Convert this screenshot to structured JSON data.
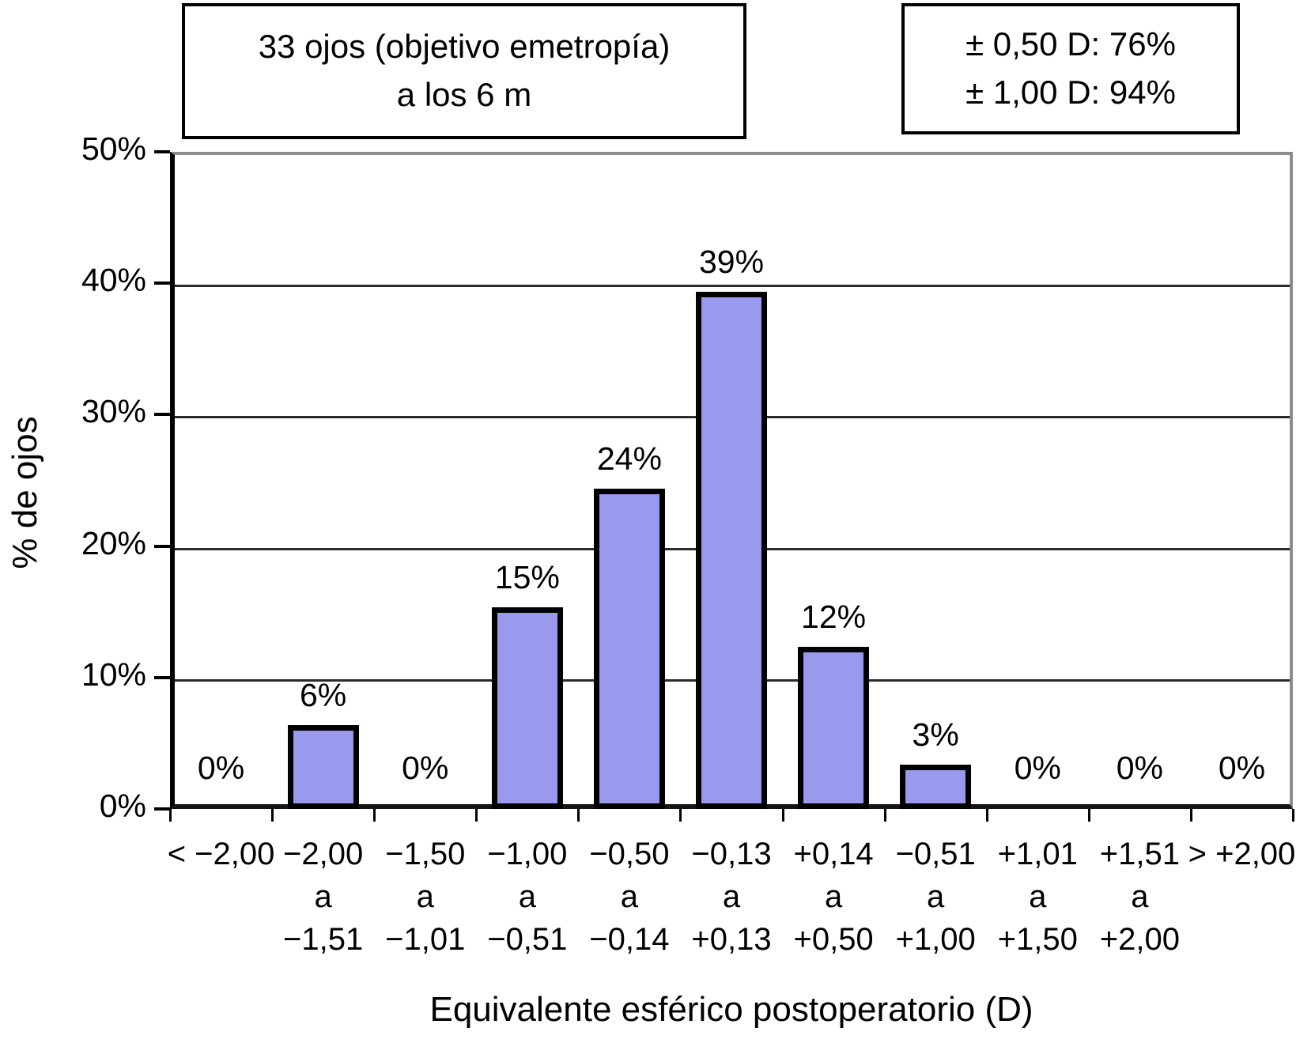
{
  "annotation_boxes": {
    "left": {
      "line1": "33 ojos (objetivo emetropía)",
      "line2": "a los 6 m"
    },
    "right": {
      "line1": "± 0,50 D: 76%",
      "line2": "± 1,00 D: 94%"
    }
  },
  "chart_data": {
    "type": "bar",
    "categories": [
      [
        "< −2,00"
      ],
      [
        "−2,00",
        "a",
        "−1,51"
      ],
      [
        "−1,50",
        "a",
        "−1,01"
      ],
      [
        "−1,00",
        "a",
        "−0,51"
      ],
      [
        "−0,50",
        "a",
        "−0,14"
      ],
      [
        "−0,13",
        "a",
        "+0,13"
      ],
      [
        "+0,14",
        "a",
        "+0,50"
      ],
      [
        "−0,51",
        "a",
        "+1,00"
      ],
      [
        "+1,01",
        "a",
        "+1,50"
      ],
      [
        "+1,51",
        "a",
        "+2,00"
      ],
      [
        "> +2,00"
      ]
    ],
    "values": [
      0,
      6,
      0,
      15,
      24,
      39,
      12,
      3,
      0,
      0,
      0
    ],
    "bar_labels": [
      "0%",
      "6%",
      "0%",
      "15%",
      "24%",
      "39%",
      "12%",
      "3%",
      "0%",
      "0%",
      "0%"
    ],
    "title": "33 ojos (objetivo emetropía) a los 6 m",
    "xlabel": "Equivalente esférico postoperatorio (D)",
    "ylabel": "% de ojos",
    "ylim": [
      0,
      50
    ],
    "yticks": [
      "0%",
      "10%",
      "20%",
      "30%",
      "40%",
      "50%"
    ],
    "grid": true,
    "legend_position": "none",
    "bar_color": "#9999ee",
    "bar_border_color": "#000000"
  }
}
